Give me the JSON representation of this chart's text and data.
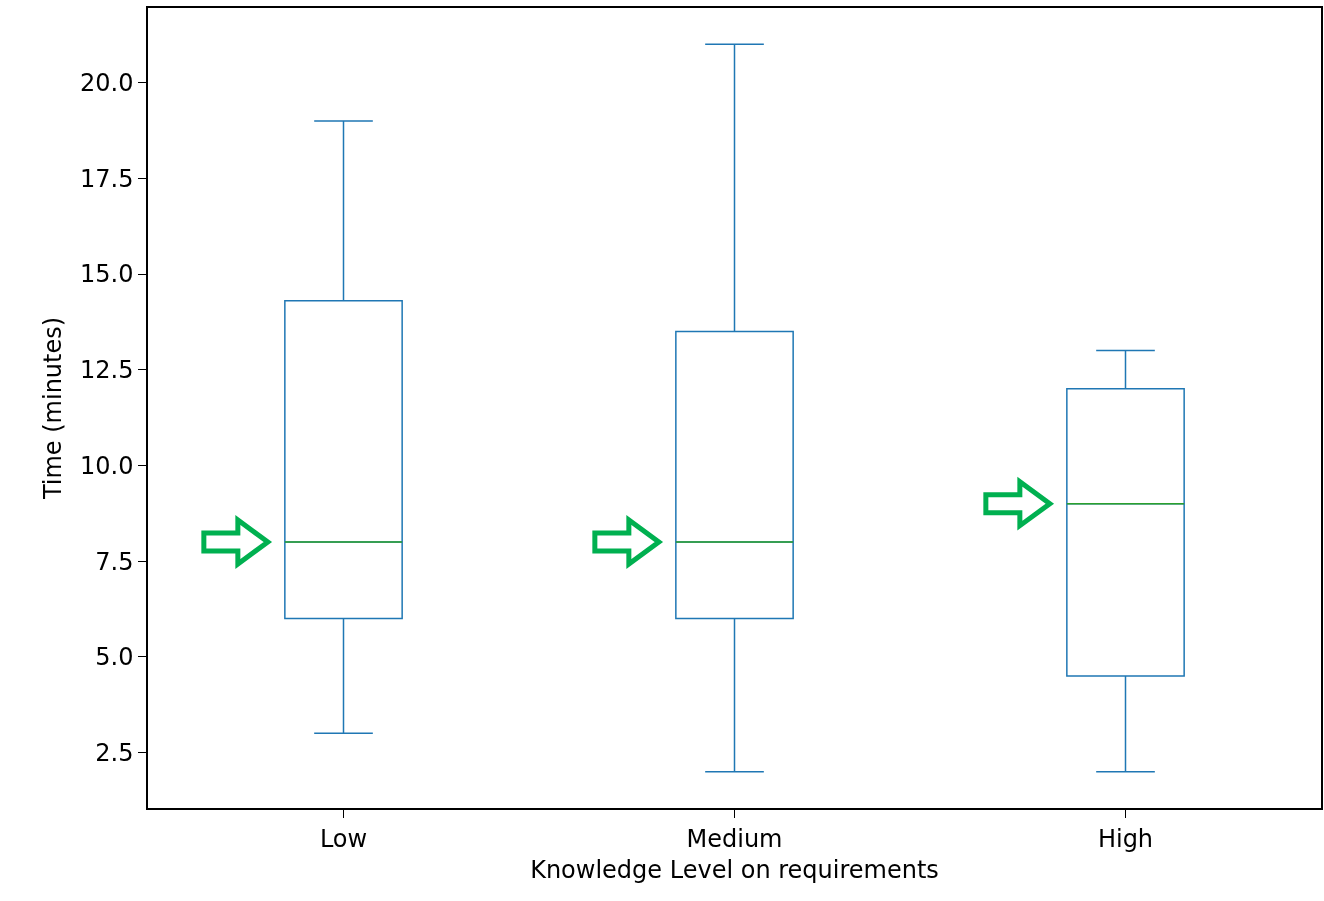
{
  "chart_data": {
    "type": "box",
    "categories": [
      "Low",
      "Medium",
      "High"
    ],
    "boxes": [
      {
        "low": 3,
        "q1": 6,
        "median": 8,
        "q3": 14.3,
        "high": 19
      },
      {
        "low": 2,
        "q1": 6,
        "median": 8,
        "q3": 13.5,
        "high": 21
      },
      {
        "low": 2,
        "q1": 4.5,
        "median": 9,
        "q3": 12,
        "high": 13
      }
    ],
    "color": "#1f77b4",
    "xlabel": "Knowledge Level on requirements",
    "ylabel": "Time (minutes)",
    "ylim": [
      1.05,
      21.95
    ],
    "yticks": [
      2.5,
      {
        "value": 5,
        "label": "5.0"
      },
      7.5,
      {
        "value": 10,
        "label": "10.0"
      },
      12.5,
      {
        "value": 15,
        "label": "15.0"
      },
      17.5,
      {
        "value": 20,
        "label": "20.0"
      }
    ],
    "grid": false
  }
}
